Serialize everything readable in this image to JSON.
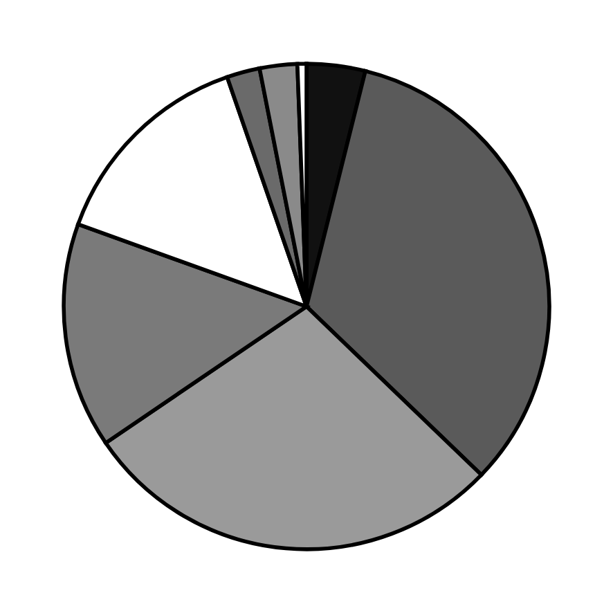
{
  "chart_data": {
    "type": "pie",
    "categories": [
      null,
      null,
      null,
      null,
      null,
      null,
      null,
      null
    ],
    "values": [
      3.9,
      33.3,
      28.3,
      15,
      14.2,
      2.2,
      2.5,
      0.6
    ],
    "colors": [
      "#111111",
      "#5a5a5a",
      "#9a9a9a",
      "#7a7a7a",
      "#ffffff",
      "#6a6a6a",
      "#8a8a8a",
      "#ffffff"
    ]
  }
}
